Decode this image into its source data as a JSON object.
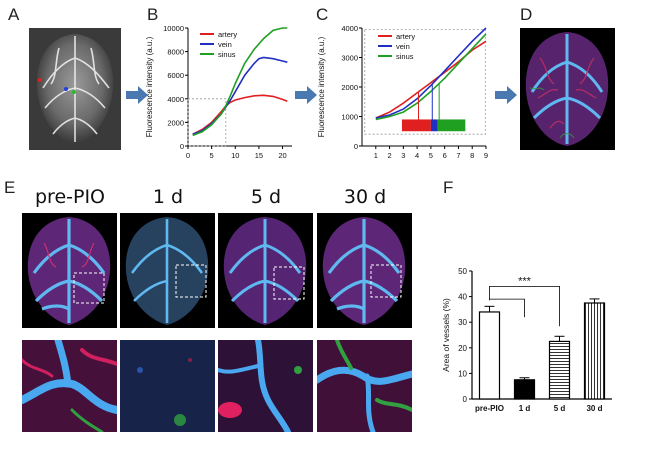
{
  "panel_letters": [
    "A",
    "B",
    "C",
    "D",
    "E",
    "F"
  ],
  "row_e_labels": [
    "pre-PIO",
    "1 d",
    "5 d",
    "30 d"
  ],
  "chart_data": [
    {
      "panel": "B",
      "type": "line",
      "title": "",
      "xlabel": "",
      "ylabel": "Fluorescence intensity (a.u.)",
      "xlim": [
        0,
        22
      ],
      "ylim": [
        0,
        10000
      ],
      "xticks": [
        0,
        5,
        10,
        15,
        20
      ],
      "yticks": [
        0,
        2000,
        4000,
        6000,
        8000,
        10000
      ],
      "legend_position": "top-left",
      "series": [
        {
          "name": "artery",
          "color": "#e02020",
          "x": [
            1,
            3,
            5,
            7,
            8,
            9,
            10,
            12,
            14,
            16,
            18,
            20,
            21
          ],
          "y": [
            1000,
            1400,
            2000,
            2900,
            3400,
            3700,
            3900,
            4100,
            4250,
            4300,
            4200,
            3950,
            3800
          ]
        },
        {
          "name": "vein",
          "color": "#2030c0",
          "x": [
            1,
            3,
            5,
            7,
            8,
            9,
            10,
            12,
            14,
            15,
            16,
            18,
            20,
            21
          ],
          "y": [
            1000,
            1300,
            1900,
            2700,
            3300,
            3900,
            4600,
            6000,
            7000,
            7400,
            7500,
            7400,
            7200,
            7100
          ]
        },
        {
          "name": "sinus",
          "color": "#20a020",
          "x": [
            1,
            3,
            5,
            7,
            8,
            9,
            10,
            12,
            14,
            16,
            18,
            20,
            21
          ],
          "y": [
            900,
            1200,
            1800,
            2700,
            3400,
            4300,
            5300,
            7000,
            8200,
            9100,
            9800,
            10000,
            10000
          ]
        }
      ]
    },
    {
      "panel": "C",
      "type": "line",
      "title": "",
      "xlabel": "",
      "ylabel": "Fluorescence intensity (a.u.)",
      "xlim": [
        0,
        9
      ],
      "ylim": [
        0,
        4000
      ],
      "xticks": [
        1,
        2,
        3,
        4,
        5,
        6,
        7,
        8,
        9
      ],
      "yticks": [
        0,
        1000,
        2000,
        3000,
        4000
      ],
      "legend_position": "top-left",
      "series": [
        {
          "name": "artery",
          "color": "#e02020",
          "x": [
            1,
            2,
            3,
            4,
            5,
            6,
            7,
            8,
            9
          ],
          "y": [
            950,
            1150,
            1450,
            1800,
            2150,
            2500,
            2850,
            3250,
            3550
          ]
        },
        {
          "name": "vein",
          "color": "#2030c0",
          "x": [
            1,
            2,
            3,
            4,
            5,
            6,
            7,
            8,
            9
          ],
          "y": [
            950,
            1050,
            1250,
            1600,
            2050,
            2550,
            3050,
            3550,
            4000
          ]
        },
        {
          "name": "sinus",
          "color": "#20a020",
          "x": [
            1,
            2,
            3,
            4,
            5,
            6,
            7,
            8,
            9
          ],
          "y": [
            900,
            1000,
            1150,
            1450,
            1850,
            2300,
            2800,
            3300,
            3800
          ]
        }
      ],
      "onset_markers": [
        4.1,
        5.1,
        5.6
      ],
      "bars": [
        {
          "color": "#e02020",
          "from": 2.9,
          "to": 5.0
        },
        {
          "color": "#2030c0",
          "from": 5.0,
          "to": 5.5
        },
        {
          "color": "#20a020",
          "from": 5.5,
          "to": 7.5
        }
      ]
    },
    {
      "panel": "F",
      "type": "bar",
      "title": "",
      "xlabel": "",
      "ylabel": "Area of vessels (%)",
      "ylim": [
        0,
        50
      ],
      "yticks": [
        0,
        10,
        20,
        30,
        40,
        50
      ],
      "categories": [
        "pre-PIO",
        "1 d",
        "5 d",
        "30 d"
      ],
      "values": [
        34,
        7.5,
        22.5,
        37.5
      ],
      "errors": [
        2.2,
        0.8,
        2.0,
        1.6
      ],
      "annotation": "***"
    }
  ]
}
